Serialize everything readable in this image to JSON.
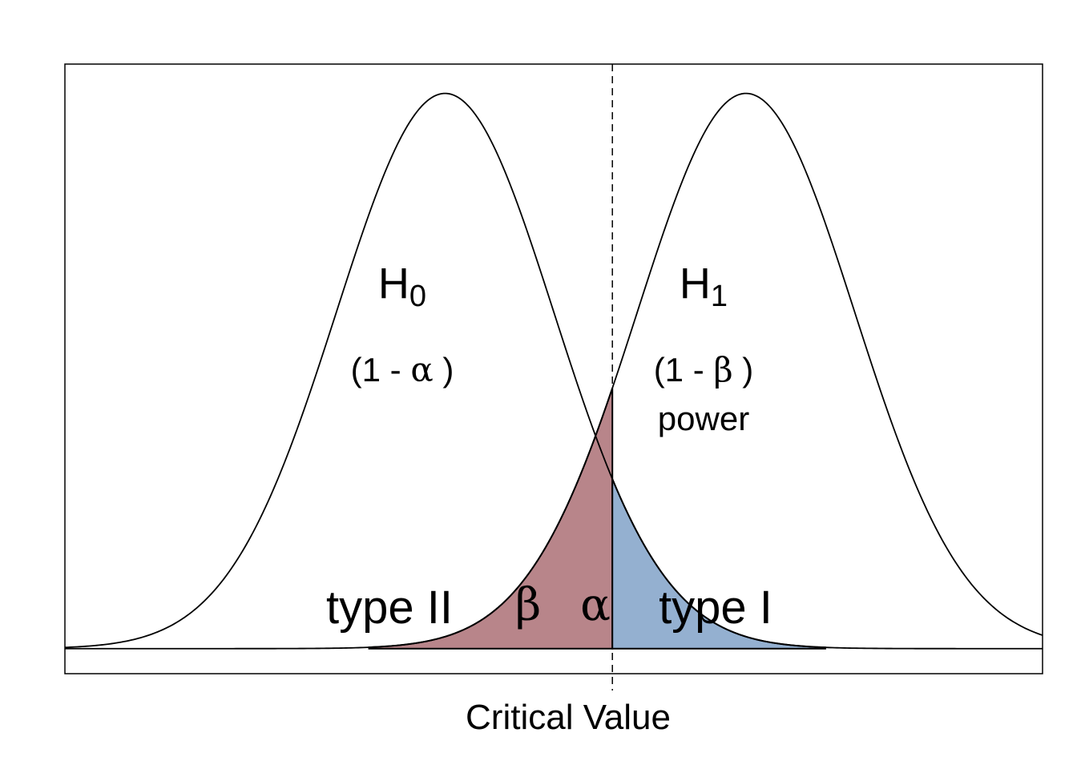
{
  "chart_data": {
    "type": "area",
    "title": "",
    "xlabel": "",
    "ylabel": "",
    "xlim": [
      -3.5,
      5.5
    ],
    "ylim": [
      -0.018,
      0.42
    ],
    "grid": false,
    "series": [
      {
        "distribution": "normal",
        "mean": 0,
        "sd": 1
      },
      {
        "distribution": "normal",
        "mean": 2.77,
        "sd": 1
      }
    ],
    "critical_value_x": 1.54,
    "shaded_regions": [
      {
        "of": "H1",
        "from": -0.7,
        "to": 1.54,
        "color": "#b8858a",
        "marks": "beta"
      },
      {
        "of": "H0",
        "from": 1.54,
        "to": 3.5,
        "color": "#94b0d0",
        "marks": "alpha"
      }
    ],
    "critical_line_label": "Critical Value",
    "labels": {
      "h0_main": "H",
      "h0_sub": "0",
      "h1_main": "H",
      "h1_sub": "1",
      "h0_area_open": "(1 - ",
      "h0_area_greek": "α",
      "h0_area_close": " )",
      "h1_area_open": "(1 - ",
      "h1_area_greek": "β",
      "h1_area_close": " )",
      "power": "power",
      "type2": "type II",
      "type1": "type I",
      "beta": "β",
      "alpha": "α"
    },
    "colors": {
      "type2_text": "#8b2e34",
      "type1_text": "#5b86b6",
      "beta_fill": "#b8858a",
      "alpha_fill": "#94b0d0"
    }
  }
}
